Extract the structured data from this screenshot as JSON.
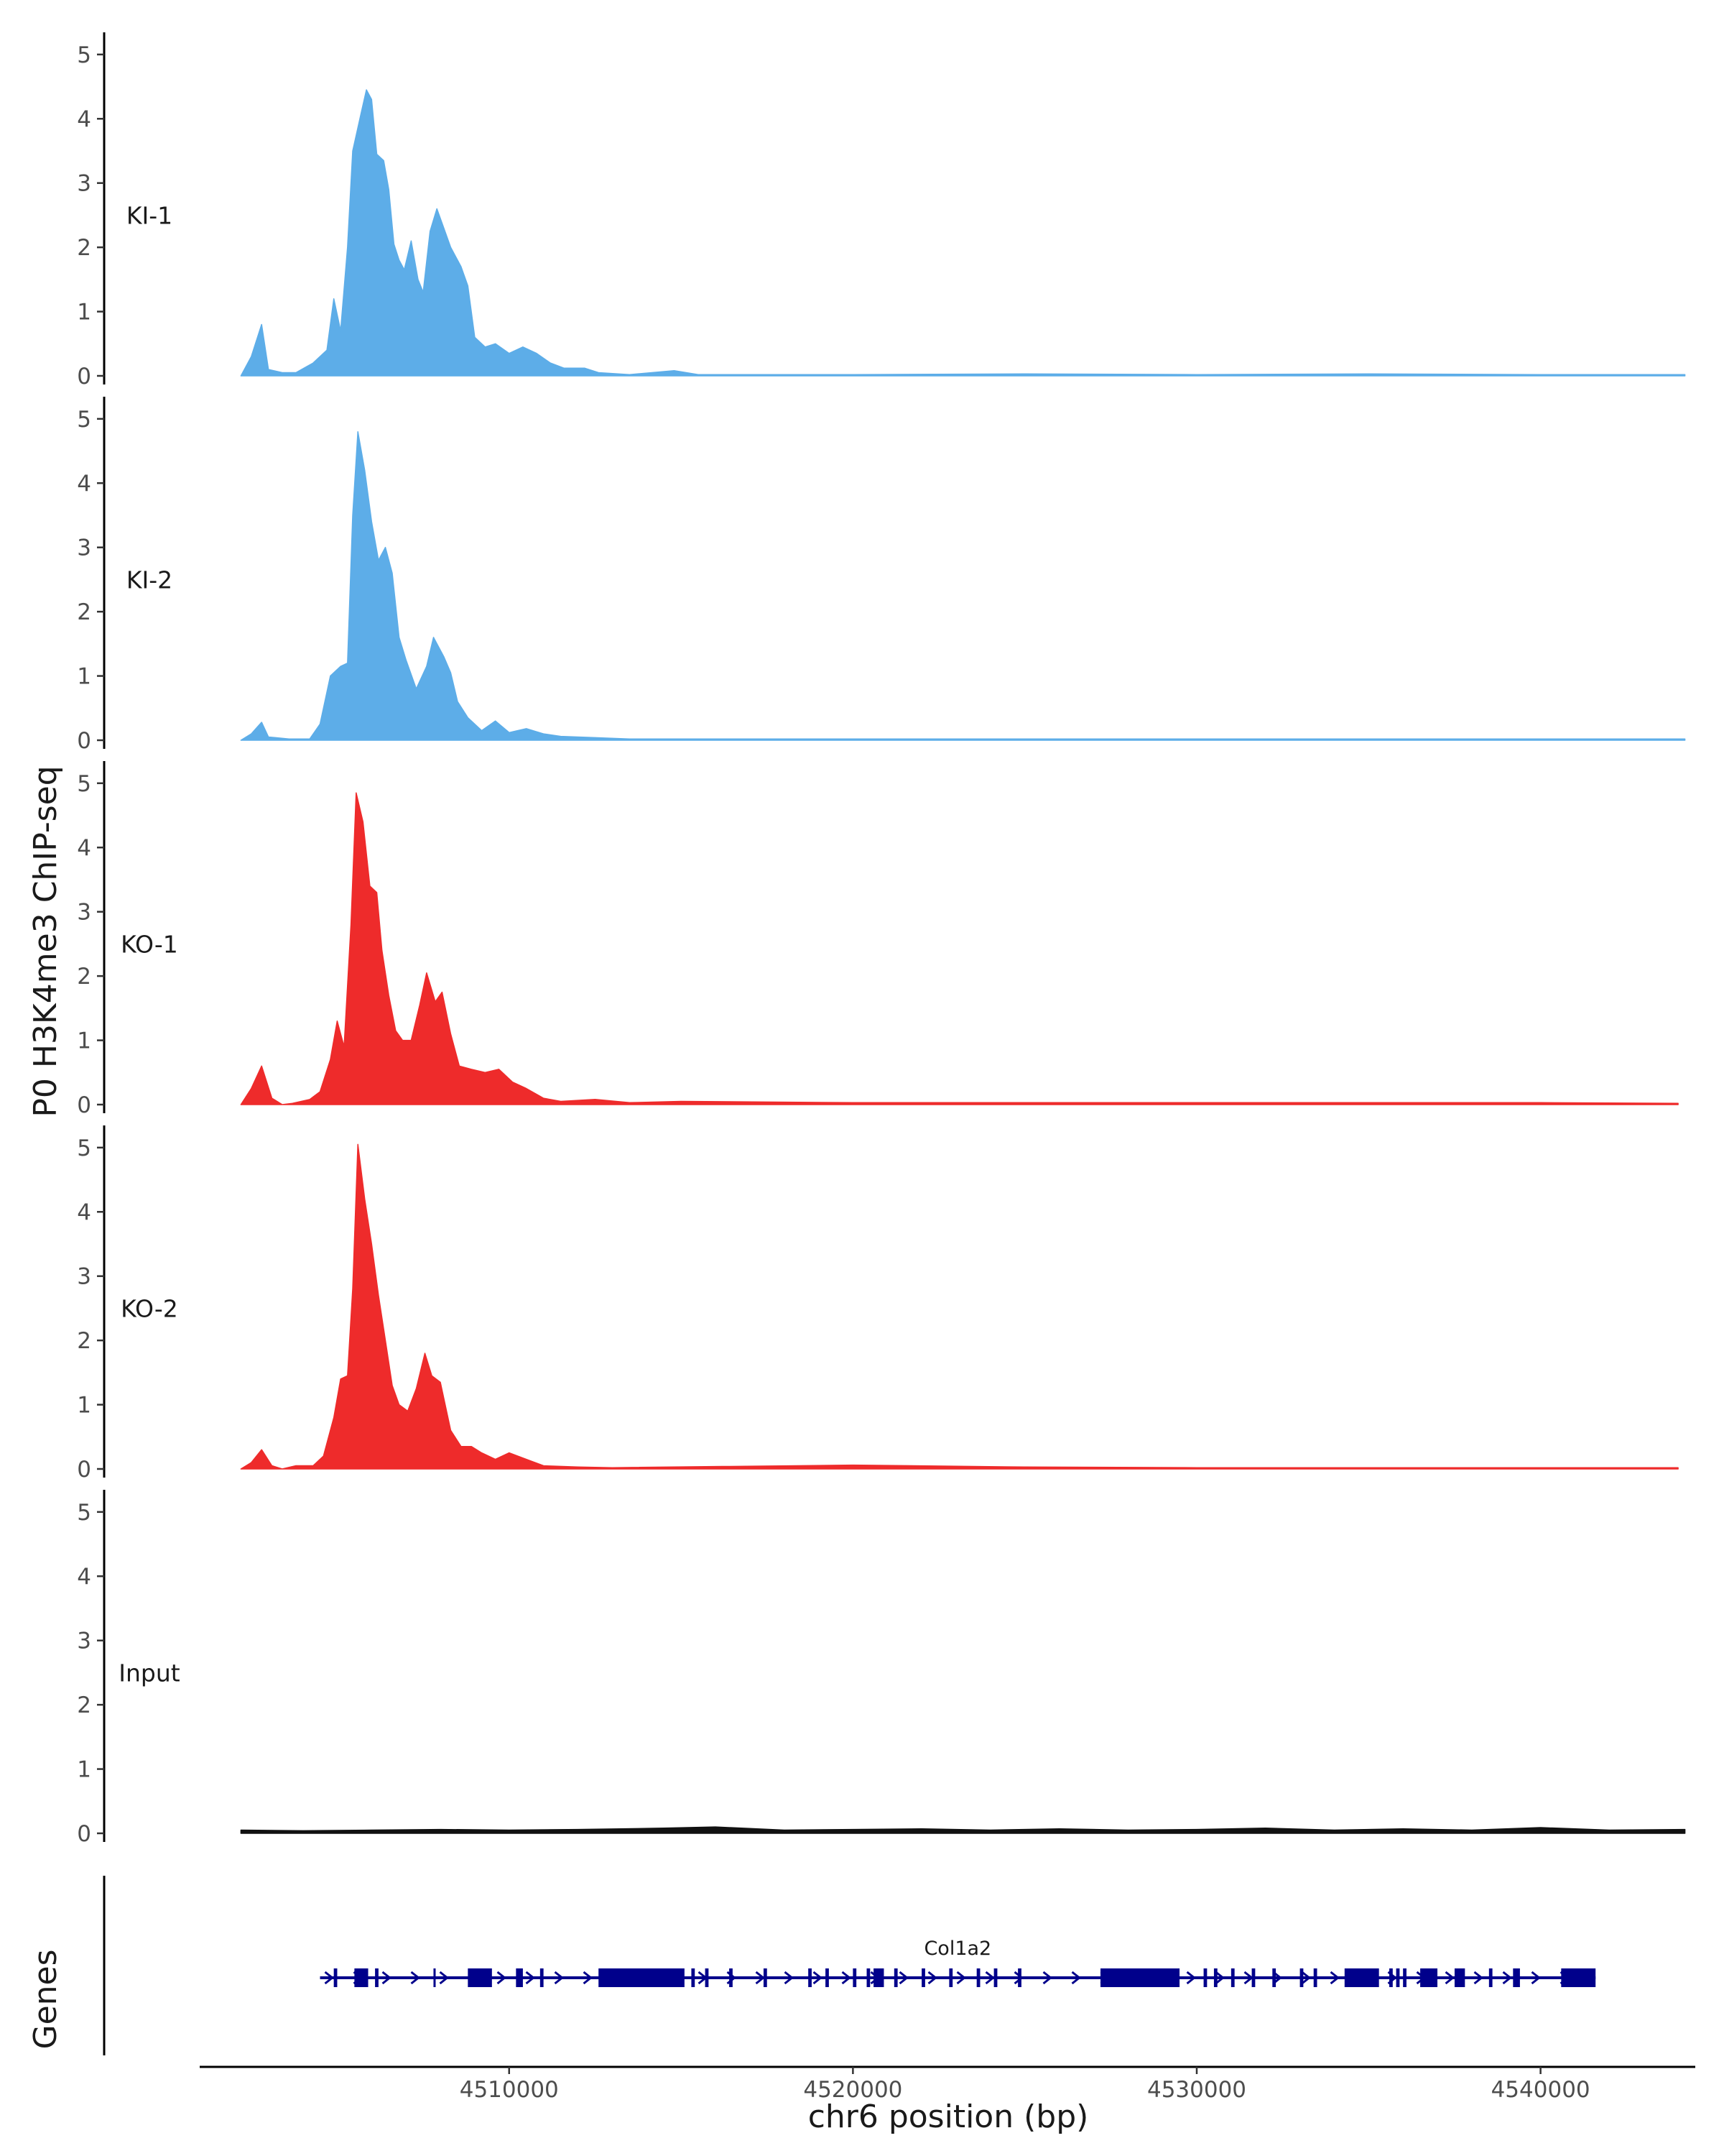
{
  "chart_data": {
    "type": "area",
    "ylabel": "P0 H3K4me3 ChIP-seq",
    "xlabel": "chr6 position (bp)",
    "genes_label": "Genes",
    "x_range": [
      4501000,
      4544500
    ],
    "ylim": [
      0,
      5.3
    ],
    "y_ticks": [
      0,
      1,
      2,
      3,
      4,
      5
    ],
    "x_ticks": [
      {
        "value": 4510000,
        "label": "4510000"
      },
      {
        "value": 4520000,
        "label": "4520000"
      },
      {
        "value": 4530000,
        "label": "4530000"
      },
      {
        "value": 4540000,
        "label": "4540000"
      }
    ],
    "tracks": [
      {
        "name": "KI-1",
        "color": "#5dade8",
        "points": [
          [
            4502200,
            0
          ],
          [
            4502500,
            0.3
          ],
          [
            4502800,
            0.8
          ],
          [
            4503000,
            0.1
          ],
          [
            4503400,
            0.05
          ],
          [
            4503800,
            0.05
          ],
          [
            4504300,
            0.2
          ],
          [
            4504700,
            0.4
          ],
          [
            4504900,
            1.2
          ],
          [
            4505100,
            0.7
          ],
          [
            4505300,
            2.0
          ],
          [
            4505450,
            3.5
          ],
          [
            4505700,
            4.1
          ],
          [
            4505850,
            4.45
          ],
          [
            4506000,
            4.3
          ],
          [
            4506150,
            3.45
          ],
          [
            4506350,
            3.35
          ],
          [
            4506500,
            2.9
          ],
          [
            4506650,
            2.05
          ],
          [
            4506800,
            1.8
          ],
          [
            4506950,
            1.65
          ],
          [
            4507150,
            2.1
          ],
          [
            4507350,
            1.5
          ],
          [
            4507500,
            1.3
          ],
          [
            4507700,
            2.25
          ],
          [
            4507900,
            2.6
          ],
          [
            4508100,
            2.3
          ],
          [
            4508300,
            2.0
          ],
          [
            4508600,
            1.7
          ],
          [
            4508800,
            1.4
          ],
          [
            4509000,
            0.6
          ],
          [
            4509300,
            0.45
          ],
          [
            4509600,
            0.5
          ],
          [
            4510000,
            0.35
          ],
          [
            4510400,
            0.45
          ],
          [
            4510800,
            0.35
          ],
          [
            4511200,
            0.2
          ],
          [
            4511600,
            0.12
          ],
          [
            4512200,
            0.12
          ],
          [
            4512600,
            0.05
          ],
          [
            4513500,
            0.02
          ],
          [
            4514800,
            0.08
          ],
          [
            4515500,
            0.02
          ],
          [
            4520000,
            0.02
          ],
          [
            4525000,
            0.03
          ],
          [
            4530000,
            0.02
          ],
          [
            4535000,
            0.03
          ],
          [
            4540000,
            0.02
          ],
          [
            4544200,
            0.02
          ],
          [
            4544200,
            0
          ]
        ]
      },
      {
        "name": "KI-2",
        "color": "#5dade8",
        "points": [
          [
            4502200,
            0
          ],
          [
            4502500,
            0.1
          ],
          [
            4502800,
            0.28
          ],
          [
            4503000,
            0.05
          ],
          [
            4503600,
            0.02
          ],
          [
            4504200,
            0.02
          ],
          [
            4504500,
            0.25
          ],
          [
            4504800,
            1.0
          ],
          [
            4505100,
            1.15
          ],
          [
            4505300,
            1.2
          ],
          [
            4505450,
            3.5
          ],
          [
            4505600,
            4.8
          ],
          [
            4505800,
            4.2
          ],
          [
            4506000,
            3.4
          ],
          [
            4506200,
            2.8
          ],
          [
            4506400,
            3.0
          ],
          [
            4506600,
            2.6
          ],
          [
            4506800,
            1.6
          ],
          [
            4507000,
            1.25
          ],
          [
            4507300,
            0.8
          ],
          [
            4507600,
            1.15
          ],
          [
            4507800,
            1.6
          ],
          [
            4508100,
            1.3
          ],
          [
            4508300,
            1.05
          ],
          [
            4508500,
            0.6
          ],
          [
            4508800,
            0.35
          ],
          [
            4509200,
            0.15
          ],
          [
            4509600,
            0.3
          ],
          [
            4510000,
            0.12
          ],
          [
            4510500,
            0.18
          ],
          [
            4511000,
            0.1
          ],
          [
            4511500,
            0.06
          ],
          [
            4512500,
            0.04
          ],
          [
            4513500,
            0.02
          ],
          [
            4520000,
            0.02
          ],
          [
            4525000,
            0.02
          ],
          [
            4530000,
            0.02
          ],
          [
            4535000,
            0.02
          ],
          [
            4540000,
            0.02
          ],
          [
            4544200,
            0.02
          ],
          [
            4544200,
            0
          ]
        ]
      },
      {
        "name": "KO-1",
        "color": "#ee2b2b",
        "points": [
          [
            4502200,
            0
          ],
          [
            4502500,
            0.25
          ],
          [
            4502800,
            0.6
          ],
          [
            4503100,
            0.1
          ],
          [
            4503400,
            0
          ],
          [
            4503700,
            0.02
          ],
          [
            4504200,
            0.08
          ],
          [
            4504500,
            0.2
          ],
          [
            4504800,
            0.7
          ],
          [
            4505000,
            1.3
          ],
          [
            4505200,
            0.9
          ],
          [
            4505400,
            2.8
          ],
          [
            4505550,
            4.85
          ],
          [
            4505750,
            4.4
          ],
          [
            4505950,
            3.4
          ],
          [
            4506150,
            3.3
          ],
          [
            4506300,
            2.4
          ],
          [
            4506500,
            1.7
          ],
          [
            4506700,
            1.15
          ],
          [
            4506900,
            1.0
          ],
          [
            4507150,
            1.0
          ],
          [
            4507400,
            1.55
          ],
          [
            4507600,
            2.05
          ],
          [
            4507850,
            1.6
          ],
          [
            4508050,
            1.75
          ],
          [
            4508300,
            1.1
          ],
          [
            4508550,
            0.6
          ],
          [
            4508900,
            0.55
          ],
          [
            4509300,
            0.5
          ],
          [
            4509700,
            0.55
          ],
          [
            4510100,
            0.35
          ],
          [
            4510500,
            0.25
          ],
          [
            4511000,
            0.1
          ],
          [
            4511500,
            0.05
          ],
          [
            4512500,
            0.08
          ],
          [
            4513500,
            0.03
          ],
          [
            4515000,
            0.05
          ],
          [
            4520000,
            0.03
          ],
          [
            4525000,
            0.03
          ],
          [
            4530000,
            0.03
          ],
          [
            4535000,
            0.03
          ],
          [
            4540000,
            0.03
          ],
          [
            4544000,
            0.02
          ],
          [
            4544000,
            0
          ]
        ]
      },
      {
        "name": "KO-2",
        "color": "#ee2b2b",
        "points": [
          [
            4502200,
            0
          ],
          [
            4502500,
            0.1
          ],
          [
            4502800,
            0.3
          ],
          [
            4503100,
            0.05
          ],
          [
            4503400,
            0
          ],
          [
            4503800,
            0.05
          ],
          [
            4504300,
            0.05
          ],
          [
            4504600,
            0.2
          ],
          [
            4504900,
            0.8
          ],
          [
            4505100,
            1.4
          ],
          [
            4505300,
            1.45
          ],
          [
            4505450,
            2.8
          ],
          [
            4505600,
            5.05
          ],
          [
            4505800,
            4.2
          ],
          [
            4506000,
            3.5
          ],
          [
            4506200,
            2.7
          ],
          [
            4506400,
            2.0
          ],
          [
            4506600,
            1.3
          ],
          [
            4506800,
            1.0
          ],
          [
            4507050,
            0.9
          ],
          [
            4507300,
            1.25
          ],
          [
            4507550,
            1.8
          ],
          [
            4507750,
            1.45
          ],
          [
            4508000,
            1.35
          ],
          [
            4508300,
            0.6
          ],
          [
            4508600,
            0.35
          ],
          [
            4508900,
            0.35
          ],
          [
            4509200,
            0.25
          ],
          [
            4509600,
            0.15
          ],
          [
            4510000,
            0.25
          ],
          [
            4510500,
            0.15
          ],
          [
            4511000,
            0.05
          ],
          [
            4512000,
            0.03
          ],
          [
            4513000,
            0.02
          ],
          [
            4520000,
            0.06
          ],
          [
            4525000,
            0.03
          ],
          [
            4530000,
            0.02
          ],
          [
            4535000,
            0.02
          ],
          [
            4540000,
            0.02
          ],
          [
            4544000,
            0.02
          ],
          [
            4544000,
            0
          ]
        ]
      },
      {
        "name": "Input",
        "color": "#111111",
        "points": [
          [
            4502200,
            0
          ],
          [
            4502200,
            0.05
          ],
          [
            4504000,
            0.04
          ],
          [
            4506000,
            0.05
          ],
          [
            4508000,
            0.06
          ],
          [
            4510000,
            0.05
          ],
          [
            4512000,
            0.06
          ],
          [
            4514500,
            0.08
          ],
          [
            4516000,
            0.1
          ],
          [
            4518000,
            0.05
          ],
          [
            4520000,
            0.06
          ],
          [
            4522000,
            0.07
          ],
          [
            4524000,
            0.05
          ],
          [
            4526000,
            0.07
          ],
          [
            4528000,
            0.05
          ],
          [
            4530000,
            0.06
          ],
          [
            4532000,
            0.08
          ],
          [
            4534000,
            0.05
          ],
          [
            4536000,
            0.07
          ],
          [
            4538000,
            0.05
          ],
          [
            4540000,
            0.09
          ],
          [
            4542000,
            0.05
          ],
          [
            4544200,
            0.06
          ],
          [
            4544200,
            0
          ]
        ]
      }
    ],
    "gene": {
      "name": "Col1a2",
      "strand": "+",
      "start": 4504500,
      "end": 4541600,
      "color": "#00008b",
      "exons": [
        [
          4504900,
          4505000
        ],
        [
          4505500,
          4505900
        ],
        [
          4506100,
          4506200
        ],
        [
          4507800,
          4507850
        ],
        [
          4508800,
          4509500
        ],
        [
          4510200,
          4510400
        ],
        [
          4510900,
          4511000
        ],
        [
          4512600,
          4515100
        ],
        [
          4515300,
          4515400
        ],
        [
          4515700,
          4515800
        ],
        [
          4516400,
          4516500
        ],
        [
          4517400,
          4517500
        ],
        [
          4518700,
          4518800
        ],
        [
          4519200,
          4519300
        ],
        [
          4520000,
          4520100
        ],
        [
          4520400,
          4520500
        ],
        [
          4520600,
          4520900
        ],
        [
          4521200,
          4521300
        ],
        [
          4522000,
          4522100
        ],
        [
          4522800,
          4522900
        ],
        [
          4523600,
          4523700
        ],
        [
          4524100,
          4524200
        ],
        [
          4524800,
          4524900
        ],
        [
          4527200,
          4529500
        ],
        [
          4530200,
          4530300
        ],
        [
          4530500,
          4530600
        ],
        [
          4531000,
          4531100
        ],
        [
          4531600,
          4531700
        ],
        [
          4532200,
          4532300
        ],
        [
          4533000,
          4533100
        ],
        [
          4533400,
          4533500
        ],
        [
          4534300,
          4535300
        ],
        [
          4535600,
          4535700
        ],
        [
          4535800,
          4535900
        ],
        [
          4536000,
          4536100
        ],
        [
          4536500,
          4537000
        ],
        [
          4537500,
          4537800
        ],
        [
          4538500,
          4538600
        ],
        [
          4539200,
          4539400
        ],
        [
          4540600,
          4541600
        ]
      ]
    }
  }
}
